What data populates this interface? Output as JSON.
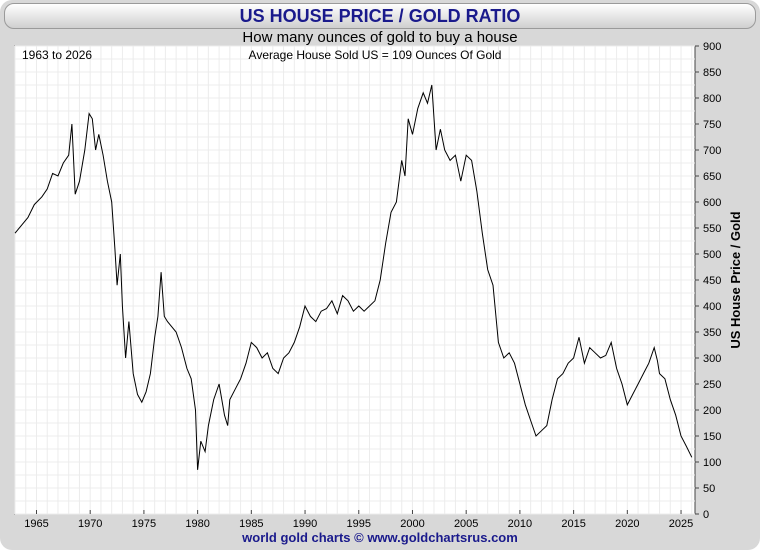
{
  "header": {
    "title": "US HOUSE PRICE / GOLD RATIO",
    "subtitle": "How many ounces of gold to buy a house"
  },
  "annotations": {
    "period": "1963 to 2026",
    "note": "Average House Sold US = 109 Ounces Of Gold"
  },
  "footer": {
    "credit": "world gold charts © www.goldchartsrus.com"
  },
  "colors": {
    "title": "#1a1a8c",
    "line": "#000000",
    "grid": "#e6e6e6",
    "frame": "#d8d8d8"
  },
  "chart_data": {
    "type": "line",
    "title": "US HOUSE PRICE / GOLD RATIO",
    "subtitle": "How many ounces of gold to buy a house",
    "ylabel": "US House Price / Gold",
    "xlabel": "",
    "xlim": [
      1963,
      2026.3
    ],
    "ylim": [
      0,
      900
    ],
    "x_ticks": [
      1965,
      1970,
      1975,
      1980,
      1985,
      1990,
      1995,
      2000,
      2005,
      2010,
      2015,
      2020,
      2025
    ],
    "y_ticks": [
      0,
      50,
      100,
      150,
      200,
      250,
      300,
      350,
      400,
      450,
      500,
      550,
      600,
      650,
      700,
      750,
      800,
      850,
      900
    ],
    "y_axis_side": "right",
    "grid": true,
    "series": [
      {
        "points": [
          [
            1963.0,
            540
          ],
          [
            1963.6,
            555
          ],
          [
            1964.2,
            570
          ],
          [
            1964.8,
            595
          ],
          [
            1965.5,
            610
          ],
          [
            1966.0,
            625
          ],
          [
            1966.5,
            655
          ],
          [
            1967.0,
            650
          ],
          [
            1967.5,
            675
          ],
          [
            1968.0,
            690
          ],
          [
            1968.3,
            750
          ],
          [
            1968.6,
            615
          ],
          [
            1969.0,
            640
          ],
          [
            1969.5,
            700
          ],
          [
            1969.9,
            770
          ],
          [
            1970.2,
            760
          ],
          [
            1970.5,
            700
          ],
          [
            1970.8,
            730
          ],
          [
            1971.2,
            690
          ],
          [
            1971.6,
            640
          ],
          [
            1972.0,
            600
          ],
          [
            1972.3,
            510
          ],
          [
            1972.5,
            440
          ],
          [
            1972.8,
            500
          ],
          [
            1973.0,
            400
          ],
          [
            1973.3,
            300
          ],
          [
            1973.6,
            370
          ],
          [
            1974.0,
            270
          ],
          [
            1974.4,
            230
          ],
          [
            1974.8,
            215
          ],
          [
            1975.2,
            235
          ],
          [
            1975.6,
            270
          ],
          [
            1976.0,
            340
          ],
          [
            1976.3,
            380
          ],
          [
            1976.6,
            465
          ],
          [
            1976.9,
            380
          ],
          [
            1977.2,
            370
          ],
          [
            1977.6,
            360
          ],
          [
            1978.0,
            350
          ],
          [
            1978.5,
            320
          ],
          [
            1979.0,
            280
          ],
          [
            1979.4,
            260
          ],
          [
            1979.8,
            200
          ],
          [
            1980.0,
            85
          ],
          [
            1980.3,
            140
          ],
          [
            1980.7,
            120
          ],
          [
            1981.0,
            170
          ],
          [
            1981.5,
            220
          ],
          [
            1982.0,
            250
          ],
          [
            1982.5,
            190
          ],
          [
            1982.8,
            170
          ],
          [
            1983.0,
            220
          ],
          [
            1983.5,
            240
          ],
          [
            1984.0,
            260
          ],
          [
            1984.5,
            290
          ],
          [
            1985.0,
            330
          ],
          [
            1985.5,
            320
          ],
          [
            1986.0,
            300
          ],
          [
            1986.5,
            310
          ],
          [
            1987.0,
            280
          ],
          [
            1987.5,
            270
          ],
          [
            1988.0,
            300
          ],
          [
            1988.5,
            310
          ],
          [
            1989.0,
            330
          ],
          [
            1989.5,
            360
          ],
          [
            1990.0,
            400
          ],
          [
            1990.5,
            380
          ],
          [
            1991.0,
            370
          ],
          [
            1991.5,
            390
          ],
          [
            1992.0,
            395
          ],
          [
            1992.5,
            410
          ],
          [
            1993.0,
            385
          ],
          [
            1993.5,
            420
          ],
          [
            1994.0,
            410
          ],
          [
            1994.5,
            390
          ],
          [
            1995.0,
            400
          ],
          [
            1995.5,
            390
          ],
          [
            1996.0,
            400
          ],
          [
            1996.5,
            410
          ],
          [
            1997.0,
            450
          ],
          [
            1997.5,
            520
          ],
          [
            1998.0,
            580
          ],
          [
            1998.5,
            600
          ],
          [
            1999.0,
            680
          ],
          [
            1999.3,
            650
          ],
          [
            1999.6,
            760
          ],
          [
            2000.0,
            730
          ],
          [
            2000.5,
            780
          ],
          [
            2001.0,
            810
          ],
          [
            2001.4,
            790
          ],
          [
            2001.8,
            825
          ],
          [
            2002.2,
            700
          ],
          [
            2002.6,
            740
          ],
          [
            2003.0,
            700
          ],
          [
            2003.5,
            680
          ],
          [
            2004.0,
            690
          ],
          [
            2004.5,
            640
          ],
          [
            2005.0,
            690
          ],
          [
            2005.5,
            680
          ],
          [
            2006.0,
            620
          ],
          [
            2006.5,
            540
          ],
          [
            2007.0,
            470
          ],
          [
            2007.5,
            440
          ],
          [
            2008.0,
            330
          ],
          [
            2008.5,
            300
          ],
          [
            2009.0,
            310
          ],
          [
            2009.5,
            290
          ],
          [
            2010.0,
            250
          ],
          [
            2010.5,
            210
          ],
          [
            2011.0,
            180
          ],
          [
            2011.5,
            150
          ],
          [
            2012.0,
            160
          ],
          [
            2012.5,
            170
          ],
          [
            2013.0,
            220
          ],
          [
            2013.5,
            260
          ],
          [
            2014.0,
            270
          ],
          [
            2014.5,
            290
          ],
          [
            2015.0,
            300
          ],
          [
            2015.5,
            340
          ],
          [
            2016.0,
            290
          ],
          [
            2016.5,
            320
          ],
          [
            2017.0,
            310
          ],
          [
            2017.5,
            300
          ],
          [
            2018.0,
            305
          ],
          [
            2018.5,
            330
          ],
          [
            2019.0,
            280
          ],
          [
            2019.5,
            250
          ],
          [
            2020.0,
            210
          ],
          [
            2020.5,
            230
          ],
          [
            2021.0,
            250
          ],
          [
            2021.5,
            270
          ],
          [
            2022.0,
            290
          ],
          [
            2022.5,
            320
          ],
          [
            2022.8,
            295
          ],
          [
            2023.0,
            270
          ],
          [
            2023.5,
            260
          ],
          [
            2024.0,
            220
          ],
          [
            2024.5,
            190
          ],
          [
            2025.0,
            150
          ],
          [
            2025.5,
            130
          ],
          [
            2026.0,
            109
          ]
        ]
      }
    ]
  }
}
